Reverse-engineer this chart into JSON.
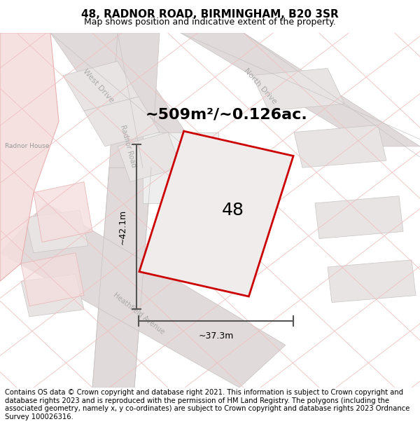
{
  "title": "48, RADNOR ROAD, BIRMINGHAM, B20 3SR",
  "subtitle": "Map shows position and indicative extent of the property.",
  "footer": "Contains OS data © Crown copyright and database right 2021. This information is subject to Crown copyright and database rights 2023 and is reproduced with the permission of HM Land Registry. The polygons (including the associated geometry, namely x, y co-ordinates) are subject to Crown copyright and database rights 2023 Ordnance Survey 100026316.",
  "area_label": "~509m²/~0.126ac.",
  "property_number": "48",
  "dim_width": "~37.3m",
  "dim_height": "~42.1m",
  "map_bg": "#ffffff",
  "property_fill": "#f0ecec",
  "property_edge": "#cc0000",
  "road_color": "#e0dada",
  "road_edge": "#c8c0c0",
  "building_color": "#e8e4e4",
  "pink_fill": "#f5dede",
  "pink_edge": "#e8aaaa",
  "grid_line_color": "#f0c0c0",
  "gray_line_color": "#c8c4c4",
  "street_label_color": "#aaaaaa",
  "dim_line_color": "#555555",
  "title_fontsize": 11,
  "subtitle_fontsize": 9,
  "footer_fontsize": 7.2,
  "area_fontsize": 16,
  "propnum_fontsize": 18,
  "dim_fontsize": 9,
  "street_fontsize": 8
}
